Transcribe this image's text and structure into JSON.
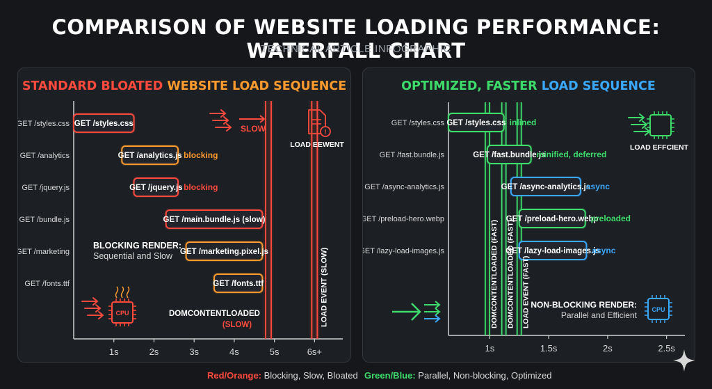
{
  "title": "COMPARISON OF WEBSITE LOADING PERFORMANCE: WATERFALL CHART",
  "subtitle": "TECHNICAL ARTICLE INFOGRAPHIC",
  "colors": {
    "red": "#ff4a3d",
    "orange": "#ff9a2e",
    "green": "#3ddc6a",
    "blue": "#3aa8ff",
    "panel_bg": "#1c1f24"
  },
  "chart_data": [
    {
      "type": "bar",
      "title_parts": [
        {
          "text": "STANDARD BLOATED ",
          "color": "#ff4a3d"
        },
        {
          "text": "WEBSITE LOAD SEQUENCE",
          "color": "#ff9a2e"
        }
      ],
      "x_ticks": [
        {
          "value": 1,
          "label": "1s"
        },
        {
          "value": 2,
          "label": "2s"
        },
        {
          "value": 3,
          "label": "3s"
        },
        {
          "value": 4,
          "label": "4s"
        },
        {
          "value": 5,
          "label": "5s"
        },
        {
          "value": 6,
          "label": "6s+"
        }
      ],
      "xlim": [
        0,
        6.6
      ],
      "rows": [
        {
          "request": "GET /styles.css",
          "bar_label": "GET /styles.css",
          "start": 0.0,
          "end": 1.5,
          "color": "#ff4a3d",
          "note": "",
          "note_color": "#ff4a3d"
        },
        {
          "request": "GET /analytics",
          "bar_label": "GET /analytics.js",
          "start": 1.2,
          "end": 2.6,
          "color": "#ff9a2e",
          "note": "blocking",
          "note_color": "#ff9a2e"
        },
        {
          "request": "GET /jquery.js",
          "bar_label": "GET /jquery.js",
          "start": 1.5,
          "end": 2.6,
          "color": "#ff4a3d",
          "note": "blocking",
          "note_color": "#ff4a3d"
        },
        {
          "request": "GET /bundle.js",
          "bar_label": "GET /main.bundle.js (slow)",
          "start": 2.3,
          "end": 4.7,
          "color": "#ff4a3d",
          "note": "",
          "note_color": "#ff4a3d"
        },
        {
          "request": "GET /marketing",
          "bar_label": "GET /marketing.pixel.js",
          "start": 2.8,
          "end": 4.7,
          "color": "#ff9a2e",
          "note": "",
          "note_color": "#ff9a2e"
        },
        {
          "request": "GET /fonts.ttf",
          "bar_label": "GET /fonts.ttf",
          "start": 3.5,
          "end": 4.7,
          "color": "#ff9a2e",
          "note": "",
          "note_color": "#ff9a2e"
        }
      ],
      "markers": [
        {
          "value": 4.85,
          "label": "DOMCONTENTLOADED",
          "sublabel": "(SLOW)",
          "color": "#ff4a3d"
        },
        {
          "value": 6.0,
          "label": "LOAD EVENT (SLOW)",
          "color": "#ff4a3d"
        }
      ],
      "annotations": {
        "slow_label": "SLOW",
        "load_event_label": "LOAD EEWENT",
        "render_title": "BLOCKING RENDER:",
        "render_sub": "Sequential and Slow",
        "cpu_label": "CPU"
      }
    },
    {
      "type": "bar",
      "title_parts": [
        {
          "text": "OPTIMIZED, FASTER ",
          "color": "#3ddc6a"
        },
        {
          "text": "LOAD SEQUENCE",
          "color": "#3aa8ff"
        }
      ],
      "x_ticks": [
        {
          "value": 1,
          "label": "1s"
        },
        {
          "value": 1.5,
          "label": "1.5s"
        },
        {
          "value": 2,
          "label": "2s"
        },
        {
          "value": 2.5,
          "label": "2.5s"
        }
      ],
      "xlim": [
        0.65,
        2.62
      ],
      "rows": [
        {
          "request": "GET /styles.css",
          "bar_label": "GET /styles.css",
          "start": 0.65,
          "end": 1.12,
          "color": "#3ddc6a",
          "note": "inlined",
          "note_color": "#3ddc6a"
        },
        {
          "request": "GET /fast.bundle.js",
          "bar_label": "GET /fast.bundle.js",
          "start": 0.98,
          "end": 1.35,
          "color": "#3ddc6a",
          "note": "minified, deferred",
          "note_color": "#3ddc6a"
        },
        {
          "request": "GET /async-analytics.js",
          "bar_label": "GET /async-analytics.js",
          "start": 1.18,
          "end": 1.77,
          "color": "#3aa8ff",
          "note": "async",
          "note_color": "#3aa8ff"
        },
        {
          "request": "GET /preload-hero.webp",
          "bar_label": "GET /preload-hero.webp",
          "start": 1.25,
          "end": 1.81,
          "color": "#3ddc6a",
          "note": "preloaded",
          "note_color": "#3ddc6a"
        },
        {
          "request": "GET /lazy-load-images.js",
          "bar_label": "GET /lazy-load-images.js",
          "start": 1.25,
          "end": 1.82,
          "color": "#3aa8ff",
          "note": "async",
          "note_color": "#3aa8ff"
        }
      ],
      "markers": [
        {
          "value": 0.98,
          "label": "DOMCONTENTLOADED (FAST)",
          "color": "#3ddc6a"
        },
        {
          "value": 1.12,
          "label": "DOMCONTENTLOADED (FAST)",
          "color": "#3ddc6a"
        },
        {
          "value": 1.25,
          "label": "LOAD EVENT (FAST)",
          "color": "#3ddc6a"
        }
      ],
      "annotations": {
        "load_label": "LOAD EFFCIENT",
        "render_title": "NON-BLOCKING RENDER:",
        "render_sub": "Parallel and Efficient",
        "cpu_label": "CPU"
      }
    }
  ],
  "legend": {
    "left_key": "Red/Orange:",
    "left_text": " Blocking, Slow, Bloated",
    "right_key": "Green/Blue:",
    "right_text": " Parallel, Non-blocking, Optimized"
  }
}
